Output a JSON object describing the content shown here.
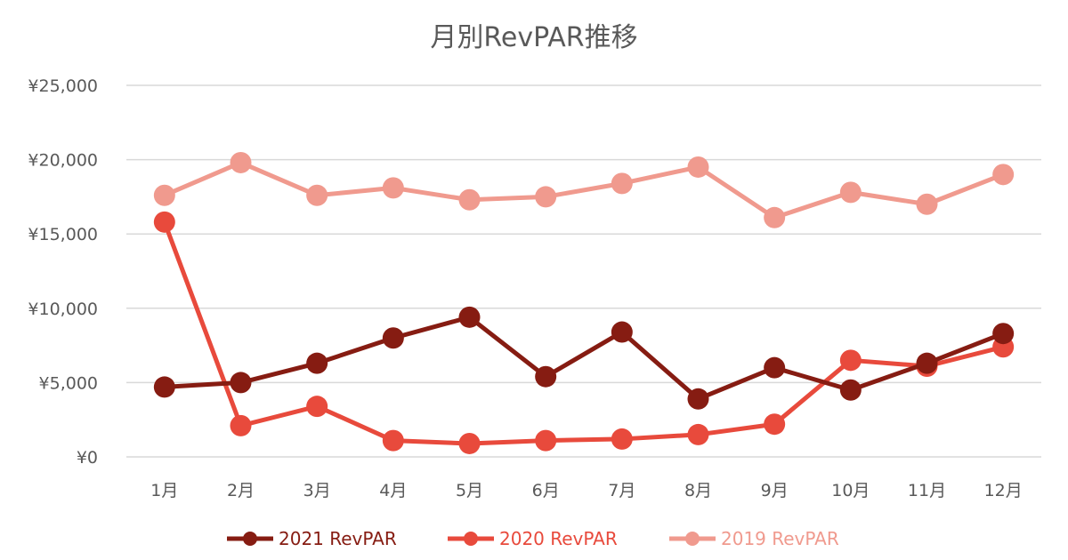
{
  "chart_data": {
    "type": "line",
    "title": "月別RevPAR推移",
    "xlabel": "",
    "ylabel": "",
    "categories": [
      "1月",
      "2月",
      "3月",
      "4月",
      "5月",
      "6月",
      "7月",
      "8月",
      "9月",
      "10月",
      "11月",
      "12月"
    ],
    "ylim": [
      0,
      25000
    ],
    "yticks": [
      0,
      5000,
      10000,
      15000,
      20000,
      25000
    ],
    "ytick_labels": [
      "¥0",
      "¥5,000",
      "¥10,000",
      "¥15,000",
      "¥20,000",
      "¥25,000"
    ],
    "grid": true,
    "legend_position": "bottom",
    "series": [
      {
        "name": "2021 RevPAR",
        "color": "#861c12",
        "values": [
          4700,
          5000,
          6300,
          8000,
          9400,
          5400,
          8400,
          3900,
          6000,
          4500,
          6300,
          8300
        ]
      },
      {
        "name": "2020 RevPAR",
        "color": "#e84a3c",
        "values": [
          15800,
          2100,
          3400,
          1100,
          900,
          1100,
          1200,
          1500,
          2200,
          6500,
          6100,
          7400
        ]
      },
      {
        "name": "2019 RevPAR",
        "color": "#f09a8e",
        "values": [
          17600,
          19800,
          17600,
          18100,
          17300,
          17500,
          18400,
          19500,
          16100,
          17800,
          17000,
          19000
        ]
      }
    ]
  }
}
